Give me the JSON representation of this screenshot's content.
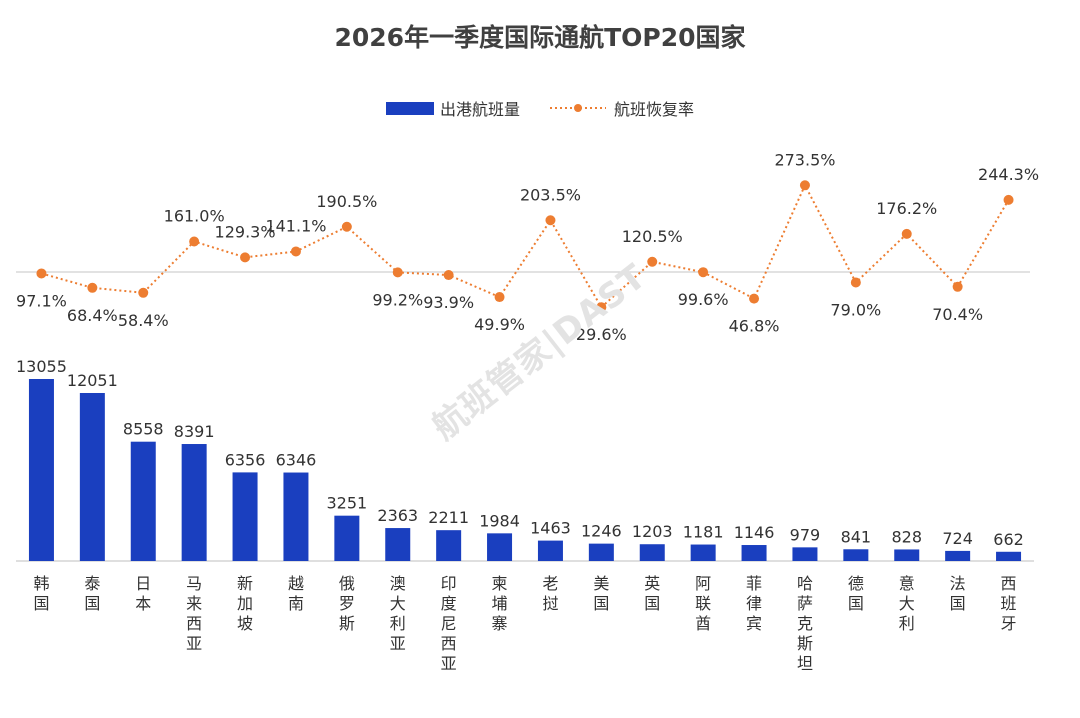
{
  "chart_data": {
    "type": "bar+line",
    "title": "2026年一季度国际通航TOP20国家",
    "categories": [
      "韩国",
      "泰国",
      "日本",
      "马来西亚",
      "新加坡",
      "越南",
      "俄罗斯",
      "澳大利亚",
      "印度尼西亚",
      "柬埔寨",
      "老挝",
      "美国",
      "英国",
      "阿联酋",
      "菲律宾",
      "哈萨克斯坦",
      "德国",
      "意大利",
      "法国",
      "西班牙"
    ],
    "series": [
      {
        "name": "出港航班量",
        "type": "bar",
        "color": "#1a3fbf",
        "values": [
          13055,
          12051,
          8558,
          8391,
          6356,
          6346,
          3251,
          2363,
          2211,
          1984,
          1463,
          1246,
          1203,
          1181,
          1146,
          979,
          841,
          828,
          724,
          662
        ]
      },
      {
        "name": "航班恢复率",
        "type": "line",
        "color": "#ed7d31",
        "unit": "%",
        "values": [
          97.1,
          68.4,
          58.4,
          161.0,
          129.3,
          141.1,
          190.5,
          99.2,
          93.9,
          49.9,
          203.5,
          29.6,
          120.5,
          99.6,
          46.8,
          273.5,
          79.0,
          176.2,
          70.4,
          244.3
        ]
      }
    ],
    "legend_position": "top",
    "grid": false,
    "reference_line": 100
  },
  "watermark": "航班管家|DAST"
}
